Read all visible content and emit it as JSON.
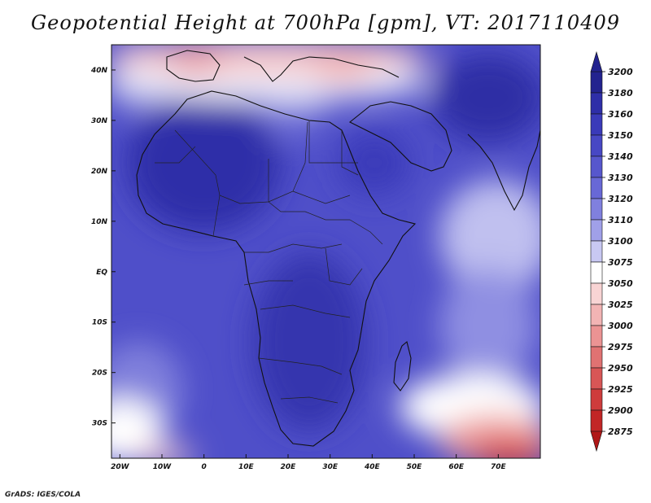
{
  "title": "Geopotential Height at 700hPa [gpm], VT: 2017110409",
  "credit": "GrADS: IGES/COLA",
  "map": {
    "lat_labels": [
      "40N",
      "30N",
      "20N",
      "10N",
      "EQ",
      "10S",
      "20S",
      "30S"
    ],
    "lon_labels": [
      "20W",
      "10W",
      "0",
      "10E",
      "20E",
      "30E",
      "40E",
      "50E",
      "60E",
      "70E"
    ],
    "lat_range": [
      -37,
      45
    ],
    "lon_range": [
      -22,
      80
    ],
    "lat_ticks": [
      40,
      30,
      20,
      10,
      0,
      -10,
      -20,
      -30
    ],
    "lon_ticks": [
      -20,
      -10,
      0,
      10,
      20,
      30,
      40,
      50,
      60,
      70
    ]
  },
  "colorbar": {
    "levels": [
      "3200",
      "3180",
      "3160",
      "3150",
      "3140",
      "3130",
      "3120",
      "3110",
      "3100",
      "3075",
      "3050",
      "3025",
      "3000",
      "2975",
      "2950",
      "2925",
      "2900",
      "2875"
    ],
    "colors": [
      "#23238f",
      "#2e2ea8",
      "#3a3ab9",
      "#4848c4",
      "#5757cd",
      "#6868d6",
      "#8080de",
      "#a0a0e8",
      "#c8c8f2",
      "#ffffff",
      "#f8d4d4",
      "#f2b4b4",
      "#eb9393",
      "#e07272",
      "#d85656",
      "#ce3c3c",
      "#c22626",
      "#b01818"
    ]
  },
  "chart_data": {
    "type": "heatmap",
    "title": "Geopotential Height at 700hPa [gpm], VT: 2017110409",
    "variable": "Geopotential Height",
    "units": "gpm",
    "level": "700hPa",
    "valid_time": "2017110409",
    "x_range": [
      -22,
      80
    ],
    "y_range": [
      -37,
      45
    ],
    "color_levels": [
      2875,
      2900,
      2925,
      2950,
      2975,
      3000,
      3025,
      3050,
      3075,
      3100,
      3110,
      3120,
      3130,
      3140,
      3150,
      3160,
      3180,
      3200
    ]
  }
}
